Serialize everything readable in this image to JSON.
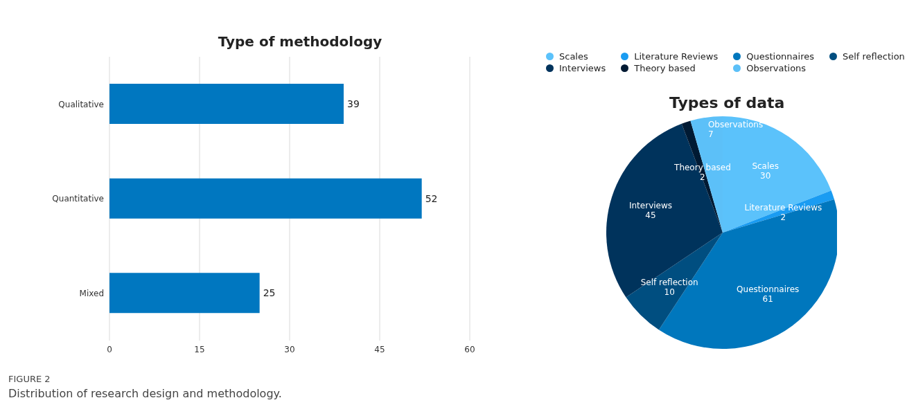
{
  "chart_data": [
    {
      "type": "bar",
      "title": "Type of methodology",
      "orientation": "horizontal",
      "categories": [
        "Qualitative",
        "Quantitative",
        "Mixed"
      ],
      "values": [
        39,
        52,
        25
      ],
      "color": "#0077c0",
      "xlim": [
        0,
        60
      ],
      "xticks": [
        0,
        15,
        30,
        45,
        60
      ],
      "grid": "x",
      "data_labels": true,
      "annotations": [
        "FIGURE 2",
        "Distribution of research design and methodology."
      ]
    },
    {
      "type": "pie",
      "title": "Types of data",
      "categories": [
        "Scales",
        "Literature Reviews",
        "Questionnaires",
        "Self reflection",
        "Interviews",
        "Theory based",
        "Observations"
      ],
      "values": [
        30,
        2,
        61,
        10,
        45,
        2,
        7
      ],
      "colors": [
        "#5bc2fb",
        "#1a9cf2",
        "#0077bd",
        "#004e80",
        "#00335c",
        "#001a33",
        "#5cc0f8"
      ],
      "data_labels": true,
      "legend": "top"
    }
  ]
}
